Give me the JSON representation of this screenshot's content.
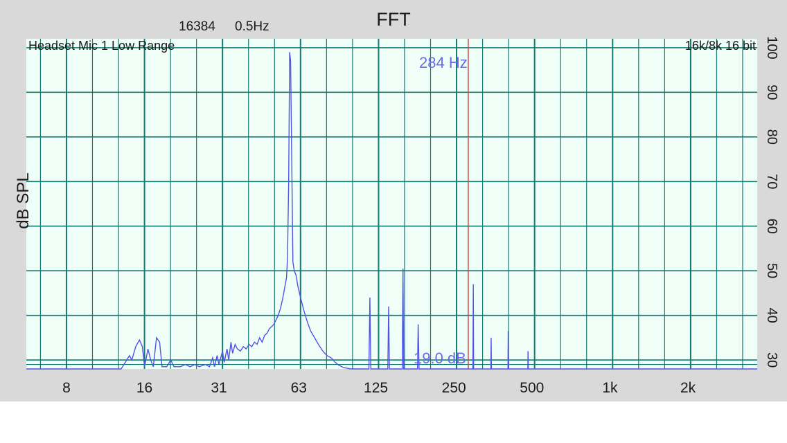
{
  "header": {
    "fft_size": "16384",
    "resolution": "0.5Hz",
    "title": "FFT",
    "input_label": "Headset Mic 1 Low Range",
    "format_label": "16k/8k 16 bit"
  },
  "readouts": {
    "cursor_freq": "284 Hz",
    "cursor_level": "19.0 dB"
  },
  "colors": {
    "panel_bg": "#d9d9d9",
    "plot_bg": "#effff8",
    "grid": "#137a73",
    "trace": "#5252e6",
    "cursor": "#cc3a3a",
    "readout": "#6b6be8"
  },
  "chart_data": {
    "type": "line",
    "title": "FFT",
    "xlabel": "",
    "ylabel": "dB SPL",
    "x_scale": "log",
    "xlim": [
      5.6,
      3700
    ],
    "ylim": [
      28,
      102
    ],
    "x_ticks": [
      {
        "value": 8,
        "label": "8"
      },
      {
        "value": 16,
        "label": "16"
      },
      {
        "value": 31,
        "label": "31"
      },
      {
        "value": 63,
        "label": "63"
      },
      {
        "value": 125,
        "label": "125"
      },
      {
        "value": 250,
        "label": "250"
      },
      {
        "value": 500,
        "label": "500"
      },
      {
        "value": 1000,
        "label": "1k"
      },
      {
        "value": 2000,
        "label": "2k"
      }
    ],
    "y_ticks": [
      {
        "value": 30,
        "label": "30"
      },
      {
        "value": 40,
        "label": "40"
      },
      {
        "value": 50,
        "label": "50"
      },
      {
        "value": 60,
        "label": "60"
      },
      {
        "value": 70,
        "label": "70"
      },
      {
        "value": 80,
        "label": "80"
      },
      {
        "value": 90,
        "label": "90"
      },
      {
        "value": 100,
        "label": "100"
      }
    ],
    "grid": true,
    "cursor": {
      "freq": 284,
      "level": 19.0
    },
    "series": [
      {
        "name": "",
        "points": [
          [
            5.6,
            28
          ],
          [
            13,
            28
          ],
          [
            13.5,
            29.5
          ],
          [
            14,
            31
          ],
          [
            14.3,
            30
          ],
          [
            14.8,
            33
          ],
          [
            15.3,
            34.5
          ],
          [
            15.7,
            33
          ],
          [
            16.0,
            28.5
          ],
          [
            16.5,
            32.5
          ],
          [
            16.9,
            30
          ],
          [
            17.3,
            28.5
          ],
          [
            17.8,
            35
          ],
          [
            18.3,
            34
          ],
          [
            18.7,
            28.5
          ],
          [
            19.5,
            28.5
          ],
          [
            20.2,
            30
          ],
          [
            20.8,
            28.5
          ],
          [
            22,
            28.5
          ],
          [
            23,
            29
          ],
          [
            24,
            28.5
          ],
          [
            25,
            29
          ],
          [
            26,
            28.5
          ],
          [
            27.5,
            29
          ],
          [
            28.5,
            28.5
          ],
          [
            29.3,
            30.5
          ],
          [
            29.8,
            28.5
          ],
          [
            30.5,
            31
          ],
          [
            31,
            29
          ],
          [
            32,
            32
          ],
          [
            32.5,
            29.5
          ],
          [
            33.3,
            32.5
          ],
          [
            33.8,
            30
          ],
          [
            34.5,
            34
          ],
          [
            35,
            31.5
          ],
          [
            35.8,
            33.5
          ],
          [
            36.5,
            32.5
          ],
          [
            37.5,
            32
          ],
          [
            38.5,
            33
          ],
          [
            39.5,
            32.5
          ],
          [
            40.5,
            33.5
          ],
          [
            41.5,
            33
          ],
          [
            42.5,
            34
          ],
          [
            43.5,
            33.5
          ],
          [
            44.5,
            35
          ],
          [
            45.5,
            34
          ],
          [
            46.5,
            35.5
          ],
          [
            47.5,
            36
          ],
          [
            48.5,
            37
          ],
          [
            49.5,
            37.5
          ],
          [
            50.5,
            38
          ],
          [
            51.5,
            39
          ],
          [
            52.5,
            40
          ],
          [
            53.5,
            41.5
          ],
          [
            54.5,
            43.5
          ],
          [
            55.5,
            46
          ],
          [
            56.5,
            48.5
          ],
          [
            57,
            53
          ],
          [
            57.6,
            70
          ],
          [
            58.1,
            99
          ],
          [
            58.6,
            97
          ],
          [
            59.2,
            75
          ],
          [
            59.8,
            52
          ],
          [
            60.5,
            50
          ],
          [
            61.5,
            49
          ],
          [
            62.5,
            46.5
          ],
          [
            64,
            44
          ],
          [
            66,
            41
          ],
          [
            68,
            38.5
          ],
          [
            70,
            36.5
          ],
          [
            72.5,
            35
          ],
          [
            75,
            33.5
          ],
          [
            78,
            32
          ],
          [
            81,
            31
          ],
          [
            84,
            30.5
          ],
          [
            87,
            29.5
          ],
          [
            90,
            28.8
          ],
          [
            94,
            28.3
          ],
          [
            100,
            28
          ],
          [
            117.5,
            28
          ],
          [
            118.5,
            44
          ],
          [
            119.5,
            28
          ],
          [
            139,
            28
          ],
          [
            140,
            42
          ],
          [
            141,
            28
          ],
          [
            158,
            28
          ],
          [
            159,
            50.5
          ],
          [
            160,
            28
          ],
          [
            181,
            28
          ],
          [
            182,
            38
          ],
          [
            183.5,
            28
          ],
          [
            296,
            28
          ],
          [
            297,
            47
          ],
          [
            298,
            28
          ],
          [
            347,
            28
          ],
          [
            348,
            35
          ],
          [
            349,
            28
          ],
          [
            404,
            28
          ],
          [
            405,
            36.5
          ],
          [
            406.5,
            28
          ],
          [
            482,
            28
          ],
          [
            483,
            32
          ],
          [
            484,
            28
          ],
          [
            3700,
            28
          ]
        ]
      }
    ]
  }
}
